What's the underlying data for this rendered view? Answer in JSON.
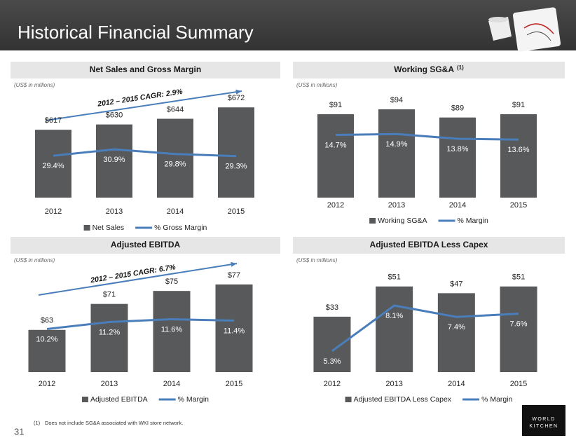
{
  "header": {
    "title": "Historical Financial Summary"
  },
  "chart_data": [
    {
      "type": "combo",
      "title": "Net Sales and Gross Margin",
      "subtitle": "(US$ in millions)",
      "annotation": "2012 – 2015 CAGR: 2.9%",
      "categories": [
        "2012",
        "2013",
        "2014",
        "2015"
      ],
      "series": [
        {
          "name": "Net Sales",
          "type": "bar",
          "color": "#58595b",
          "values": [
            617,
            630,
            644,
            672
          ],
          "value_labels": [
            "$617",
            "$630",
            "$644",
            "$672"
          ]
        },
        {
          "name": "% Gross Margin",
          "type": "line",
          "axis": "y2",
          "color": "#4a7ebb",
          "values": [
            29.4,
            30.9,
            29.8,
            29.3
          ],
          "value_labels": [
            "29.4%",
            "30.9%",
            "29.8%",
            "29.3%"
          ]
        }
      ],
      "ylim": [
        450,
        700
      ],
      "y2lim": [
        19.5,
        43.5
      ]
    },
    {
      "type": "combo",
      "title": "Working SG&A",
      "title_note": "(1)",
      "subtitle": "(US$ in millions)",
      "categories": [
        "2012",
        "2013",
        "2014",
        "2015"
      ],
      "series": [
        {
          "name": "Working SG&A",
          "type": "bar",
          "color": "#58595b",
          "values": [
            91,
            94,
            89,
            91
          ],
          "value_labels": [
            "$91",
            "$94",
            "$89",
            "$91"
          ]
        },
        {
          "name": "% Margin",
          "type": "line",
          "axis": "y2",
          "color": "#4a7ebb",
          "values": [
            14.7,
            14.9,
            13.8,
            13.6
          ],
          "value_labels": [
            "14.7%",
            "14.9%",
            "13.8%",
            "13.6%"
          ]
        }
      ],
      "ylim": [
        40,
        100
      ],
      "y2lim": [
        0,
        23
      ]
    },
    {
      "type": "combo",
      "title": "Adjusted EBITDA",
      "subtitle": "(US$ in millions)",
      "annotation": "2012 – 2015 CAGR: 6.7%",
      "categories": [
        "2012",
        "2013",
        "2014",
        "2015"
      ],
      "series": [
        {
          "name": "Adjusted EBITDA",
          "type": "bar",
          "color": "#58595b",
          "values": [
            63,
            71,
            75,
            77
          ],
          "value_labels": [
            "$63",
            "$71",
            "$75",
            "$77"
          ]
        },
        {
          "name": "% Margin",
          "type": "line",
          "axis": "y2",
          "color": "#4a7ebb",
          "values": [
            10.2,
            11.2,
            11.6,
            11.4
          ],
          "value_labels": [
            "10.2%",
            "11.2%",
            "11.6%",
            "11.4%"
          ]
        }
      ],
      "ylim": [
        50,
        80
      ],
      "y2lim": [
        4,
        18
      ]
    },
    {
      "type": "combo",
      "title": "Adjusted EBITDA Less Capex",
      "subtitle": "(US$ in millions)",
      "categories": [
        "2012",
        "2013",
        "2014",
        "2015"
      ],
      "series": [
        {
          "name": "Adjusted EBITDA Less Capex",
          "type": "bar",
          "color": "#58595b",
          "values": [
            33,
            51,
            47,
            51
          ],
          "value_labels": [
            "$33",
            "$51",
            "$47",
            "$51"
          ]
        },
        {
          "name": "% Margin",
          "type": "line",
          "axis": "y2",
          "color": "#4a7ebb",
          "values": [
            5.3,
            8.1,
            7.4,
            7.6
          ],
          "value_labels": [
            "5.3%",
            "8.1%",
            "7.4%",
            "7.6%"
          ]
        }
      ],
      "ylim": [
        0,
        58
      ],
      "y2lim": [
        4,
        10
      ]
    }
  ],
  "footnote": {
    "marker": "(1)",
    "text": "Does not include SG&A associated with WKI store network."
  },
  "page_number": "31",
  "logo": {
    "line1": "WORLD",
    "line2": "KITCHEN"
  }
}
